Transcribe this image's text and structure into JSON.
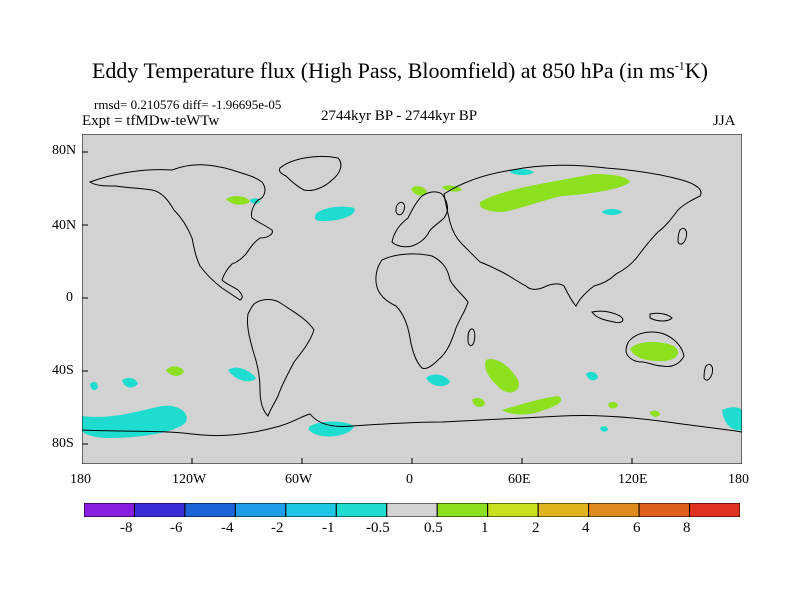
{
  "title": {
    "main": "Eddy Temperature flux (High Pass, Bloomfield) at 850 hPa (in ms",
    "sup": "-1",
    "end": "K)"
  },
  "stats_line": "rmsd= 0.210576 diff= -1.96695e-05",
  "expt_line": "Expt = tfMDw-teWTw",
  "period_label": "2744kyr BP - 2744kyr BP",
  "season_label": "JJA",
  "lat_labels": [
    "80N",
    "40N",
    "0",
    "40S",
    "80S"
  ],
  "lon_labels": [
    "180",
    "120W",
    "60W",
    "0",
    "60E",
    "120E",
    "180"
  ],
  "colorbar": {
    "labels": [
      "-8",
      "-6",
      "-4",
      "-2",
      "-1",
      "-0.5",
      "0.5",
      "1",
      "2",
      "4",
      "6",
      "8"
    ],
    "colors": [
      "#8a1ee0",
      "#3a2fd6",
      "#1e64d8",
      "#1e9ee8",
      "#1ec8e4",
      "#1edcd0",
      "#d2d2d2",
      "#8ce01e",
      "#c8e01e",
      "#e0b41e",
      "#e08a1e",
      "#e0601e",
      "#e0321e"
    ]
  },
  "colors": {
    "ocean": "#d2d2d2",
    "positive": "#8ce01e",
    "negative": "#1edcd0"
  }
}
